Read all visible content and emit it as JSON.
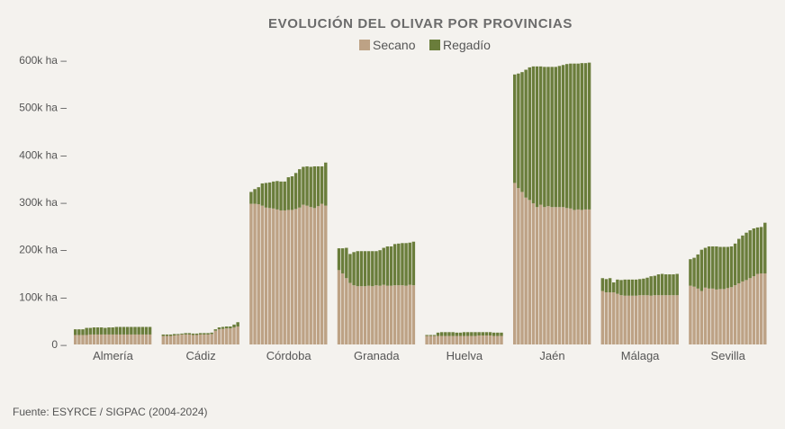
{
  "chart_data": {
    "type": "bar",
    "stacked": true,
    "title": "EVOLUCIÓN DEL OLIVAR POR PROVINCIAS",
    "legend": [
      "Secano",
      "Regadío"
    ],
    "legend_position": "top-center",
    "colors": {
      "Secano": "#bda285",
      "Regadío": "#6a7d3b"
    },
    "ylim": [
      0,
      600000
    ],
    "yticks": [
      {
        "value": 0,
        "label": "0 –"
      },
      {
        "value": 100000,
        "label": "100k ha –"
      },
      {
        "value": 200000,
        "label": "200k ha –"
      },
      {
        "value": 300000,
        "label": "300k ha –"
      },
      {
        "value": 400000,
        "label": "400k ha –"
      },
      {
        "value": 500000,
        "label": "500k ha –"
      },
      {
        "value": 600000,
        "label": "600k ha –"
      }
    ],
    "years": "2004-2024",
    "provinces": [
      {
        "name": "Almería",
        "secano": [
          20000,
          20000,
          20000,
          20000,
          21000,
          21000,
          21000,
          21000,
          21000,
          21000,
          21000,
          21000,
          21000,
          21000,
          21000,
          21000,
          21000,
          21000,
          21000,
          21000,
          21000
        ],
        "total": [
          32000,
          32000,
          32000,
          35000,
          35000,
          36000,
          36000,
          36000,
          35000,
          36000,
          36000,
          37000,
          37000,
          37000,
          37000,
          37000,
          37000,
          37000,
          37000,
          37000,
          37000
        ]
      },
      {
        "name": "Cádiz",
        "secano": [
          18000,
          18000,
          18000,
          19000,
          20000,
          21000,
          21000,
          21000,
          20000,
          20000,
          21000,
          21000,
          21000,
          22000,
          29000,
          32000,
          33000,
          34000,
          34000,
          36000,
          38000
        ],
        "total": [
          21000,
          21000,
          21000,
          22000,
          22000,
          23000,
          24000,
          24000,
          23000,
          23000,
          24000,
          24000,
          24000,
          25000,
          32000,
          36000,
          37000,
          38000,
          38000,
          42000,
          47000
        ]
      },
      {
        "name": "Córdoba",
        "secano": [
          297000,
          297000,
          296000,
          293000,
          289000,
          288000,
          287000,
          285000,
          283000,
          283000,
          284000,
          284000,
          286000,
          289000,
          295000,
          293000,
          290000,
          288000,
          292000,
          297000,
          293000
        ],
        "total": [
          322000,
          328000,
          332000,
          340000,
          341000,
          342000,
          344000,
          345000,
          344000,
          344000,
          353000,
          355000,
          362000,
          370000,
          375000,
          376000,
          375000,
          376000,
          376000,
          376000,
          384000
        ]
      },
      {
        "name": "Granada",
        "secano": [
          157000,
          150000,
          140000,
          130000,
          125000,
          123000,
          123000,
          123000,
          124000,
          123000,
          125000,
          124000,
          126000,
          124000,
          124000,
          125000,
          125000,
          125000,
          124000,
          126000,
          125000
        ],
        "total": [
          203000,
          203000,
          204000,
          191000,
          195000,
          197000,
          197000,
          197000,
          197000,
          197000,
          197000,
          199000,
          204000,
          207000,
          207000,
          212000,
          213000,
          214000,
          214000,
          215000,
          217000
        ]
      },
      {
        "name": "Huelva",
        "secano": [
          18000,
          18000,
          18000,
          18000,
          18000,
          18000,
          18000,
          18000,
          18000,
          18000,
          18000,
          18000,
          18000,
          18000,
          19000,
          19000,
          19000,
          19000,
          18000,
          18000,
          18000
        ],
        "total": [
          20000,
          20000,
          20000,
          25000,
          26000,
          26000,
          26000,
          26000,
          25000,
          25000,
          26000,
          26000,
          26000,
          26000,
          26000,
          26000,
          26000,
          26000,
          25000,
          25000,
          25000
        ]
      },
      {
        "name": "Jaén",
        "secano": [
          341000,
          330000,
          322000,
          310000,
          305000,
          298000,
          290000,
          295000,
          290000,
          292000,
          290000,
          290000,
          290000,
          290000,
          288000,
          287000,
          284000,
          285000,
          284000,
          285000,
          285000
        ],
        "total": [
          570000,
          572000,
          575000,
          580000,
          585000,
          587000,
          587000,
          587000,
          586000,
          586000,
          586000,
          586000,
          588000,
          590000,
          592000,
          593000,
          593000,
          593000,
          594000,
          594000,
          595000
        ]
      },
      {
        "name": "Málaga",
        "secano": [
          113000,
          110000,
          110000,
          110000,
          107000,
          104000,
          103000,
          103000,
          103000,
          103000,
          104000,
          104000,
          104000,
          103000,
          104000,
          104000,
          104000,
          104000,
          104000,
          104000,
          104000
        ],
        "total": [
          140000,
          138000,
          140000,
          131000,
          137000,
          136000,
          137000,
          137000,
          137000,
          137000,
          138000,
          139000,
          141000,
          144000,
          145000,
          148000,
          149000,
          148000,
          148000,
          148000,
          149000
        ]
      },
      {
        "name": "Sevilla",
        "secano": [
          124000,
          122000,
          118000,
          113000,
          120000,
          118000,
          118000,
          116000,
          117000,
          117000,
          119000,
          121000,
          125000,
          129000,
          133000,
          136000,
          140000,
          144000,
          149000,
          150000,
          150000
        ],
        "total": [
          180000,
          183000,
          190000,
          200000,
          204000,
          207000,
          207000,
          207000,
          206000,
          206000,
          206000,
          207000,
          213000,
          223000,
          230000,
          236000,
          241000,
          245000,
          247000,
          248000,
          257000
        ]
      }
    ]
  },
  "source": "Fuente: ESYRCE / SIGPAC (2004-2024)"
}
